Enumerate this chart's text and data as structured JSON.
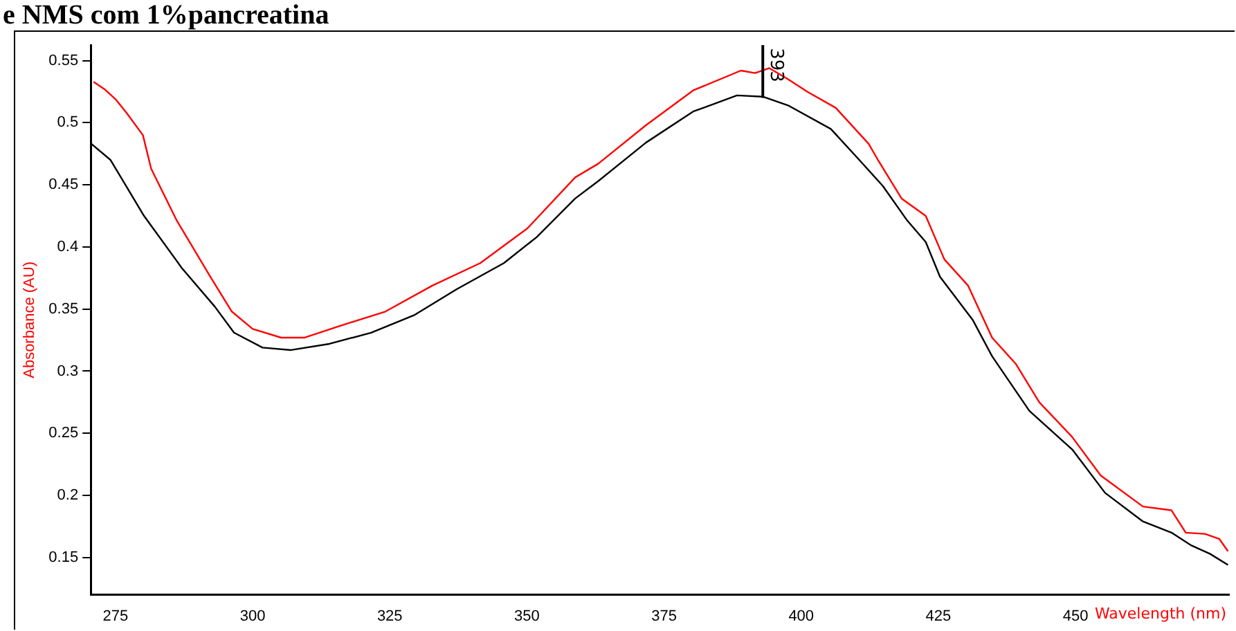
{
  "chart_data": {
    "type": "line",
    "title": "e NMS com 1%pancreatina",
    "xlabel": "Wavelength (nm)",
    "ylabel": "Absorbance (AU)",
    "xlim": [
      270.5,
      478
    ],
    "ylim": [
      0.12,
      0.5625
    ],
    "xticks": [
      275,
      300,
      325,
      350,
      375,
      400,
      425,
      450
    ],
    "yticks": [
      0.15,
      0.2,
      0.25,
      0.3,
      0.35,
      0.4,
      0.45,
      0.5,
      0.55
    ],
    "grid": false,
    "legend": false,
    "marker": "none",
    "line_style": "solid",
    "annotations": [
      {
        "text": "393",
        "x": 393,
        "y": 0.52
      }
    ],
    "series": [
      {
        "color": "#ff0000",
        "x": [
          271,
          273,
          275,
          277,
          280,
          281.5,
          286.2,
          292.3,
          296.2,
          300,
          305.2,
          309.5,
          315.6,
          324.2,
          332.8,
          341.5,
          350.1,
          358.8,
          363,
          371.7,
          380.3,
          389,
          391.6,
          394.2,
          397.6,
          401.1,
          406.3,
          412.3,
          414,
          418.3,
          422.7,
          426.1,
          430.4,
          434.8,
          439.1,
          443.4,
          449.4,
          454.6,
          462.3,
          467.5,
          470.1,
          473.6,
          476.2,
          477.8
        ],
        "values": [
          0.533,
          0.527,
          0.519,
          0.508,
          0.49,
          0.463,
          0.421,
          0.376,
          0.348,
          0.334,
          0.327,
          0.327,
          0.336,
          0.348,
          0.369,
          0.387,
          0.415,
          0.456,
          0.467,
          0.498,
          0.526,
          0.542,
          0.54,
          0.544,
          0.535,
          0.525,
          0.512,
          0.483,
          0.47,
          0.439,
          0.425,
          0.39,
          0.369,
          0.327,
          0.306,
          0.275,
          0.247,
          0.216,
          0.191,
          0.188,
          0.17,
          0.169,
          0.165,
          0.155
        ]
      },
      {
        "color": "#000000",
        "x": [
          270.6,
          274.1,
          280.2,
          287.1,
          293.1,
          296.6,
          301.8,
          307,
          314,
          321.6,
          329.4,
          337.2,
          345.8,
          351.8,
          358.8,
          363,
          371.7,
          380.3,
          388.3,
          393,
          397.6,
          405.4,
          410.6,
          414.9,
          419.2,
          422.7,
          425.3,
          431.3,
          434.8,
          441.6,
          449.4,
          455.4,
          462.3,
          467.5,
          471,
          474.5,
          477.8
        ],
        "values": [
          0.483,
          0.47,
          0.425,
          0.383,
          0.352,
          0.331,
          0.319,
          0.317,
          0.322,
          0.331,
          0.345,
          0.366,
          0.387,
          0.408,
          0.439,
          0.453,
          0.484,
          0.509,
          0.522,
          0.521,
          0.514,
          0.495,
          0.47,
          0.449,
          0.422,
          0.404,
          0.376,
          0.341,
          0.312,
          0.268,
          0.237,
          0.202,
          0.179,
          0.17,
          0.16,
          0.153,
          0.144
        ]
      }
    ]
  }
}
